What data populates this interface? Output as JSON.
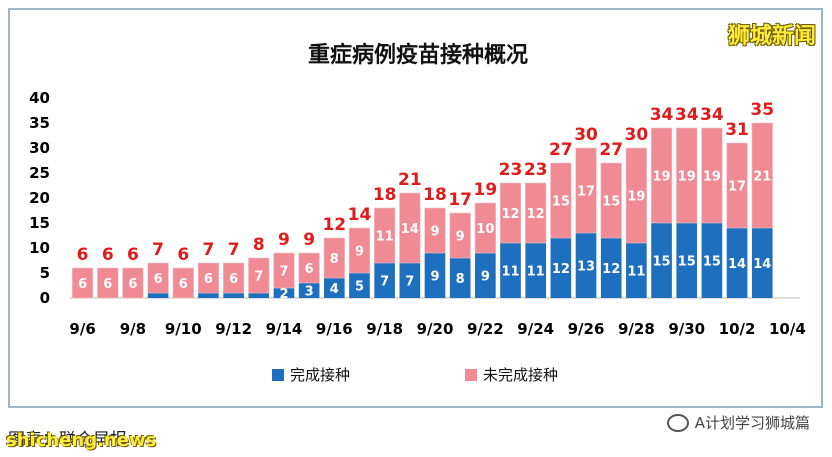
{
  "watermark_top": "狮城新闻",
  "footer_left": "图表：联合早报",
  "watermark_bottom": "shicheng.news",
  "account_tag": "A计划学习狮城篇",
  "icon_names": {
    "account": "wechat-icon"
  },
  "chart_data": {
    "type": "bar",
    "stacked": true,
    "title": "重症病例疫苗接种概况",
    "xlabel": "",
    "ylabel": "",
    "ylim": [
      0,
      40
    ],
    "yticks": [
      0,
      5,
      10,
      15,
      20,
      25,
      30,
      35,
      40
    ],
    "grid": false,
    "legend_position": "bottom",
    "categories": [
      "9/6",
      "9/7",
      "9/8",
      "9/9",
      "9/10",
      "9/11",
      "9/12",
      "9/13",
      "9/14",
      "9/15",
      "9/16",
      "9/17",
      "9/18",
      "9/19",
      "9/20",
      "9/21",
      "9/22",
      "9/23",
      "9/24",
      "9/25",
      "9/26",
      "9/27",
      "9/28",
      "9/29",
      "9/30",
      "10/1",
      "10/2",
      "10/3",
      "10/4"
    ],
    "xtick_labels": [
      "9/6",
      "9/8",
      "9/10",
      "9/12",
      "9/14",
      "9/16",
      "9/18",
      "9/20",
      "9/22",
      "9/24",
      "9/26",
      "9/28",
      "9/30",
      "10/2",
      "10/4"
    ],
    "series": [
      {
        "name": "完成接种",
        "color": "#1f6fbf",
        "values": [
          0,
          0,
          0,
          1,
          0,
          1,
          1,
          1,
          2,
          3,
          4,
          5,
          7,
          7,
          9,
          8,
          9,
          11,
          11,
          12,
          13,
          12,
          11,
          15,
          15,
          15,
          14,
          14,
          null
        ]
      },
      {
        "name": "未完成接种",
        "color": "#f08a94",
        "values": [
          6,
          6,
          6,
          6,
          6,
          6,
          6,
          7,
          7,
          6,
          8,
          9,
          11,
          14,
          9,
          9,
          10,
          12,
          12,
          15,
          17,
          15,
          19,
          19,
          19,
          19,
          17,
          21,
          null
        ]
      }
    ],
    "totals": [
      6,
      6,
      6,
      7,
      6,
      7,
      7,
      8,
      9,
      9,
      12,
      14,
      18,
      21,
      18,
      17,
      19,
      23,
      23,
      27,
      30,
      27,
      30,
      34,
      34,
      34,
      31,
      35,
      null
    ],
    "label_min_segment": 2,
    "label_min_segment_note": "segments smaller than this value show no inner label, as in the original"
  }
}
